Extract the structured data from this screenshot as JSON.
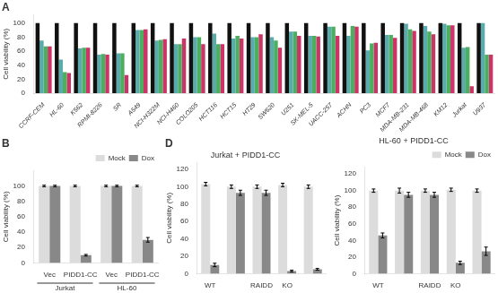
{
  "chart_data": [
    {
      "type": "bar",
      "title": "A",
      "categories": [
        "CCRF-CEM",
        "HL-60",
        "K562",
        "RPMI-8226",
        "SR",
        "A549",
        "NCI-H322M",
        "NCI-H460",
        "COLO205",
        "HCT116",
        "HCT15",
        "HT29",
        "SW620",
        "U251",
        "SK-MEL-5",
        "UACC-257",
        "ACHN",
        "PC3",
        "MCF7",
        "MDA-MB-231",
        "MDA-MB-468",
        "KM12",
        "Jurkat",
        "U937"
      ],
      "series": [
        {
          "color": "#111111",
          "values": [
            100,
            100,
            100,
            100,
            100,
            100,
            100,
            100,
            100,
            100,
            100,
            100,
            100,
            100,
            100,
            100,
            100,
            100,
            100,
            100,
            100,
            100,
            100,
            100
          ]
        },
        {
          "color": "#5AABAB",
          "values": [
            75,
            48,
            64,
            55,
            57,
            90,
            75,
            70,
            80,
            85,
            78,
            80,
            80,
            88,
            82,
            95,
            82,
            61,
            83,
            99,
            96,
            99,
            65,
            100
          ]
        },
        {
          "color": "#4CAF60",
          "values": [
            67,
            30,
            65,
            56,
            57,
            90,
            76,
            70,
            80,
            70,
            82,
            80,
            75,
            88,
            82,
            95,
            96,
            71,
            83,
            91,
            88,
            97,
            66,
            55
          ]
        },
        {
          "color": "#CC3366",
          "values": [
            67,
            29,
            65,
            55,
            26,
            91,
            77,
            78,
            70,
            70,
            78,
            84,
            65,
            82,
            81,
            82,
            95,
            72,
            79,
            89,
            84,
            97,
            10,
            55
          ]
        }
      ],
      "ylabel": "Cell viability (%)",
      "ylim": [
        0,
        112
      ],
      "yticks": [
        0,
        20,
        40,
        60,
        80,
        100
      ],
      "grid": false
    },
    {
      "type": "bar",
      "title": "B",
      "categories": [
        "Vec",
        "PIDD1-CC",
        "Vec",
        "PIDD1-CC"
      ],
      "annotations": [
        "Jurkat",
        "HL-60"
      ],
      "series": [
        {
          "name": "Mock",
          "color": "#DCDCDC",
          "values": [
            100,
            100,
            100,
            100
          ],
          "errors": [
            1,
            1,
            1,
            1
          ]
        },
        {
          "name": "Dox",
          "color": "#888888",
          "values": [
            100,
            10,
            100,
            30
          ],
          "errors": [
            1,
            1,
            1,
            3
          ]
        }
      ],
      "ylabel": "Cell viability (%)",
      "ylim": [
        0,
        120
      ],
      "yticks": [
        0,
        20,
        40,
        60,
        80,
        100
      ],
      "legend": "upper right",
      "grid": false
    },
    {
      "type": "bar",
      "title": "D",
      "subtitle": "Jurkat + PIDD1-CC",
      "categories": [
        "WT",
        null,
        "RAIDD",
        "KO",
        null
      ],
      "series": [
        {
          "name": "Mock",
          "color": "#DCDCDC",
          "values": [
            103,
            100,
            100,
            102,
            100
          ],
          "errors": [
            2,
            2,
            2,
            2,
            2
          ]
        },
        {
          "name": "Dox",
          "color": "#888888",
          "values": [
            10,
            93,
            93,
            3,
            5
          ],
          "errors": [
            2,
            3,
            3,
            1,
            1
          ]
        }
      ],
      "ylabel": "Cell viability (%)",
      "ylim": [
        0,
        128
      ],
      "yticks": [
        0,
        20,
        40,
        60,
        80,
        100,
        120
      ],
      "grid": false
    },
    {
      "type": "bar",
      "subtitle": "HL-60 + PIDD1-CC",
      "categories": [
        "WT",
        null,
        "RAIDD",
        "KO",
        null
      ],
      "series": [
        {
          "name": "Mock",
          "color": "#DCDCDC",
          "values": [
            100,
            100,
            100,
            101,
            100
          ],
          "errors": [
            2,
            3,
            2,
            2,
            2
          ]
        },
        {
          "name": "Dox",
          "color": "#888888",
          "values": [
            46,
            95,
            95,
            13,
            27
          ],
          "errors": [
            3,
            3,
            3,
            2,
            5
          ]
        }
      ],
      "ylabel": "Cell viability (%)",
      "ylim": [
        0,
        128
      ],
      "yticks": [
        0,
        20,
        40,
        60,
        80,
        100,
        120
      ],
      "legend": "upper right",
      "grid": false
    }
  ]
}
